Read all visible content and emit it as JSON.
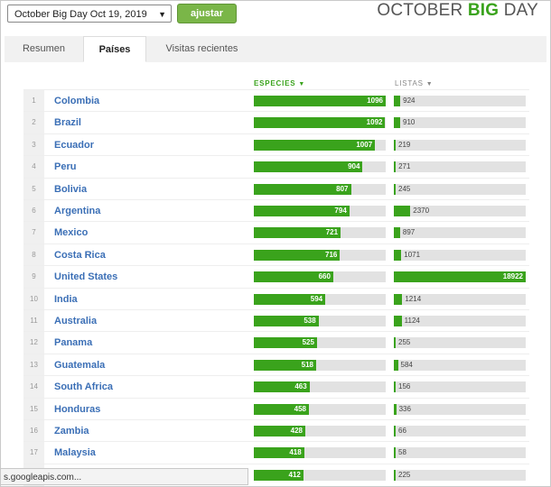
{
  "toolbar": {
    "date_select": "October Big Day Oct 19, 2019",
    "adjust_label": "ajustar"
  },
  "logo": {
    "part1": "OCTOBER ",
    "part2": "BIG",
    "part3": " DAY"
  },
  "tabs": [
    "Resumen",
    "Países",
    "Visitas recientes"
  ],
  "table": {
    "species_header": "ESPECIES",
    "lists_header": "LISTAS",
    "max_species": 1096,
    "max_lists": 18922,
    "rows": [
      {
        "rank": "1",
        "country": "Colombia",
        "species": 1096,
        "lists": 924
      },
      {
        "rank": "2",
        "country": "Brazil",
        "species": 1092,
        "lists": 910
      },
      {
        "rank": "3",
        "country": "Ecuador",
        "species": 1007,
        "lists": 219
      },
      {
        "rank": "4",
        "country": "Peru",
        "species": 904,
        "lists": 271
      },
      {
        "rank": "5",
        "country": "Bolivia",
        "species": 807,
        "lists": 245
      },
      {
        "rank": "6",
        "country": "Argentina",
        "species": 794,
        "lists": 2370
      },
      {
        "rank": "7",
        "country": "Mexico",
        "species": 721,
        "lists": 897
      },
      {
        "rank": "8",
        "country": "Costa Rica",
        "species": 716,
        "lists": 1071
      },
      {
        "rank": "9",
        "country": "United States",
        "species": 660,
        "lists": 18922
      },
      {
        "rank": "10",
        "country": "India",
        "species": 594,
        "lists": 1214
      },
      {
        "rank": "11",
        "country": "Australia",
        "species": 538,
        "lists": 1124
      },
      {
        "rank": "12",
        "country": "Panama",
        "species": 525,
        "lists": 255
      },
      {
        "rank": "13",
        "country": "Guatemala",
        "species": 518,
        "lists": 584
      },
      {
        "rank": "14",
        "country": "South Africa",
        "species": 463,
        "lists": 156
      },
      {
        "rank": "15",
        "country": "Honduras",
        "species": 458,
        "lists": 336
      },
      {
        "rank": "16",
        "country": "Zambia",
        "species": 428,
        "lists": 66
      },
      {
        "rank": "17",
        "country": "Malaysia",
        "species": 418,
        "lists": 58
      },
      {
        "rank": "",
        "country": "",
        "species": 412,
        "lists": 225
      }
    ]
  },
  "status_bar": "s.googleapis.com...",
  "colors": {
    "accent_green": "#3aa31c",
    "link_blue": "#3b6fb6",
    "button_green": "#7ab648"
  }
}
